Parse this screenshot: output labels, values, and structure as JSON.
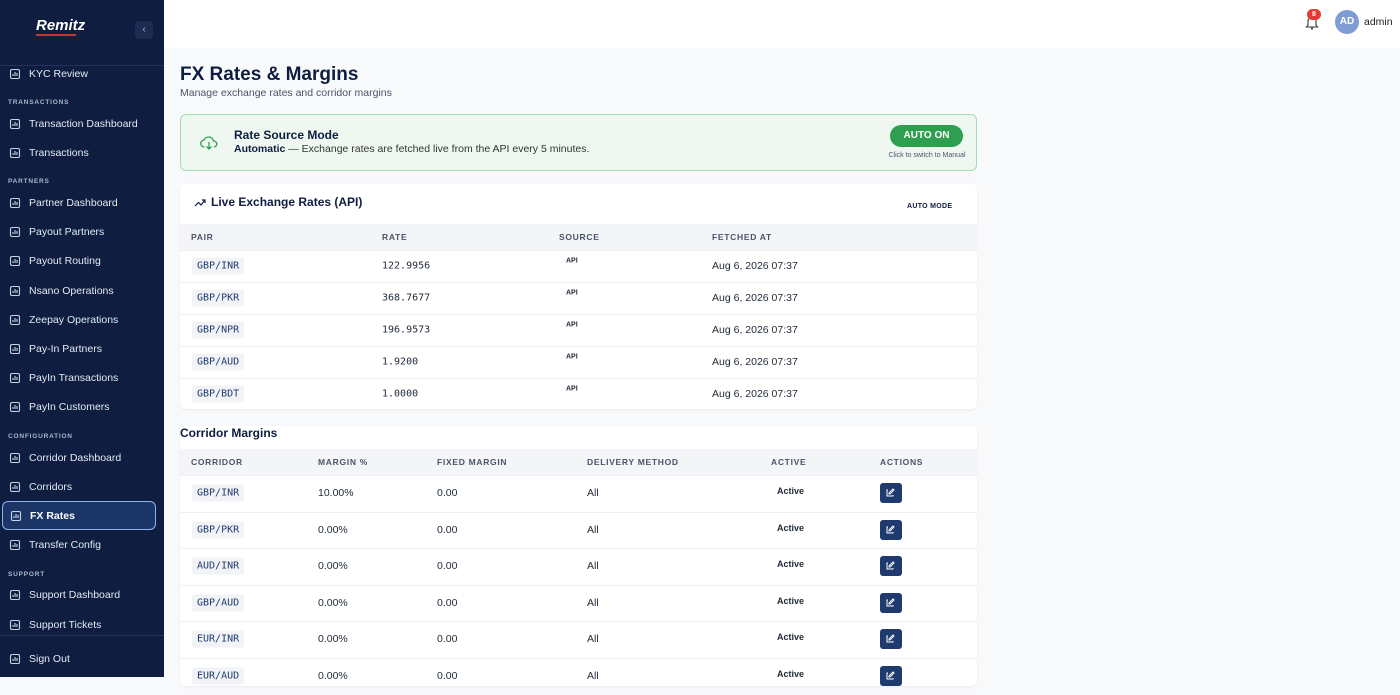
{
  "sidebar": {
    "logo": "Remitz",
    "top_items": [
      "KYC Review"
    ],
    "sections": [
      {
        "title": "TRANSACTIONS",
        "items": [
          "Transaction Dashboard",
          "Transactions"
        ]
      },
      {
        "title": "PARTNERS",
        "items": [
          "Partner Dashboard",
          "Payout Partners",
          "Payout Routing",
          "Nsano Operations",
          "Zeepay Operations",
          "Pay-In Partners",
          "PayIn Transactions",
          "PayIn Customers"
        ]
      },
      {
        "title": "CONFIGURATION",
        "items": [
          "Corridor Dashboard",
          "Corridors",
          "FX Rates",
          "Transfer Config"
        ]
      },
      {
        "title": "SUPPORT",
        "items": [
          "Support Dashboard",
          "Support Tickets"
        ]
      }
    ],
    "active": "FX Rates",
    "sign_out": "Sign Out"
  },
  "topbar": {
    "notifications": "8",
    "avatar": "AD",
    "user": "admin"
  },
  "header": {
    "title": "FX Rates & Margins",
    "subtitle": "Manage exchange rates and corridor margins"
  },
  "banner": {
    "title": "Rate Source Mode",
    "mode": "Automatic",
    "text": "— Exchange rates are fetched live from the API every 5 minutes.",
    "button": "AUTO ON",
    "hint": "Click to switch to Manual"
  },
  "rates": {
    "title": "Live Exchange Rates (API)",
    "badge": "AUTO MODE",
    "columns": [
      "PAIR",
      "RATE",
      "SOURCE",
      "FETCHED AT"
    ],
    "rows": [
      [
        "GBP/INR",
        "122.9956",
        "API",
        "Aug 6, 2026 07:37"
      ],
      [
        "GBP/PKR",
        "368.7677",
        "API",
        "Aug 6, 2026 07:37"
      ],
      [
        "GBP/NPR",
        "196.9573",
        "API",
        "Aug 6, 2026 07:37"
      ],
      [
        "GBP/AUD",
        "1.9200",
        "API",
        "Aug 6, 2026 07:37"
      ],
      [
        "GBP/BDT",
        "1.0000",
        "API",
        "Aug 6, 2026 07:37"
      ]
    ]
  },
  "margins": {
    "title": "Corridor Margins",
    "columns": [
      "CORRIDOR",
      "MARGIN %",
      "FIXED MARGIN",
      "DELIVERY METHOD",
      "ACTIVE",
      "ACTIONS"
    ],
    "rows": [
      [
        "GBP/INR",
        "10.00%",
        "0.00",
        "All",
        "Active"
      ],
      [
        "GBP/PKR",
        "0.00%",
        "0.00",
        "All",
        "Active"
      ],
      [
        "AUD/INR",
        "0.00%",
        "0.00",
        "All",
        "Active"
      ],
      [
        "GBP/AUD",
        "0.00%",
        "0.00",
        "All",
        "Active"
      ],
      [
        "EUR/INR",
        "0.00%",
        "0.00",
        "All",
        "Active"
      ],
      [
        "EUR/AUD",
        "0.00%",
        "0.00",
        "All",
        "Active"
      ]
    ]
  }
}
